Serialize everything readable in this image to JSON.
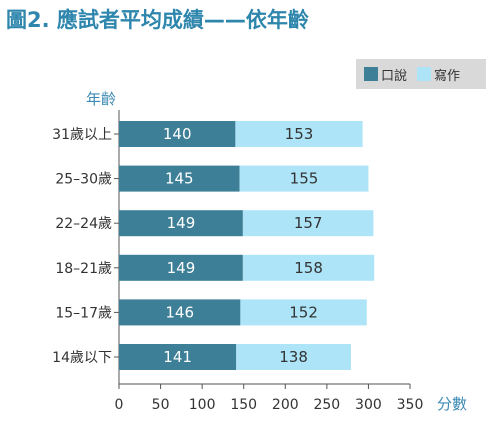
{
  "title": "圖2. 應試者平均成績——依年齡",
  "colors": {
    "title": "#2e86ad",
    "speaking": "#3d7f97",
    "writing": "#aee4f8",
    "axis_label": "#3b8ab3"
  },
  "chart_data": {
    "type": "bar",
    "orientation": "horizontal",
    "stacked": true,
    "categories": [
      "31歲以上",
      "25–30歲",
      "22–24歲",
      "18–21歲",
      "15–17歲",
      "14歲以下"
    ],
    "series": [
      {
        "name": "口說",
        "values": [
          140,
          145,
          149,
          149,
          146,
          141
        ]
      },
      {
        "name": "寫作",
        "values": [
          153,
          155,
          157,
          158,
          152,
          138
        ]
      }
    ],
    "ylabel": "年齡",
    "xlabel": "分數",
    "xlim": [
      0,
      350
    ],
    "xticks": [
      0,
      50,
      100,
      150,
      200,
      250,
      300,
      350
    ],
    "legend_position": "top-right",
    "grid": false
  }
}
